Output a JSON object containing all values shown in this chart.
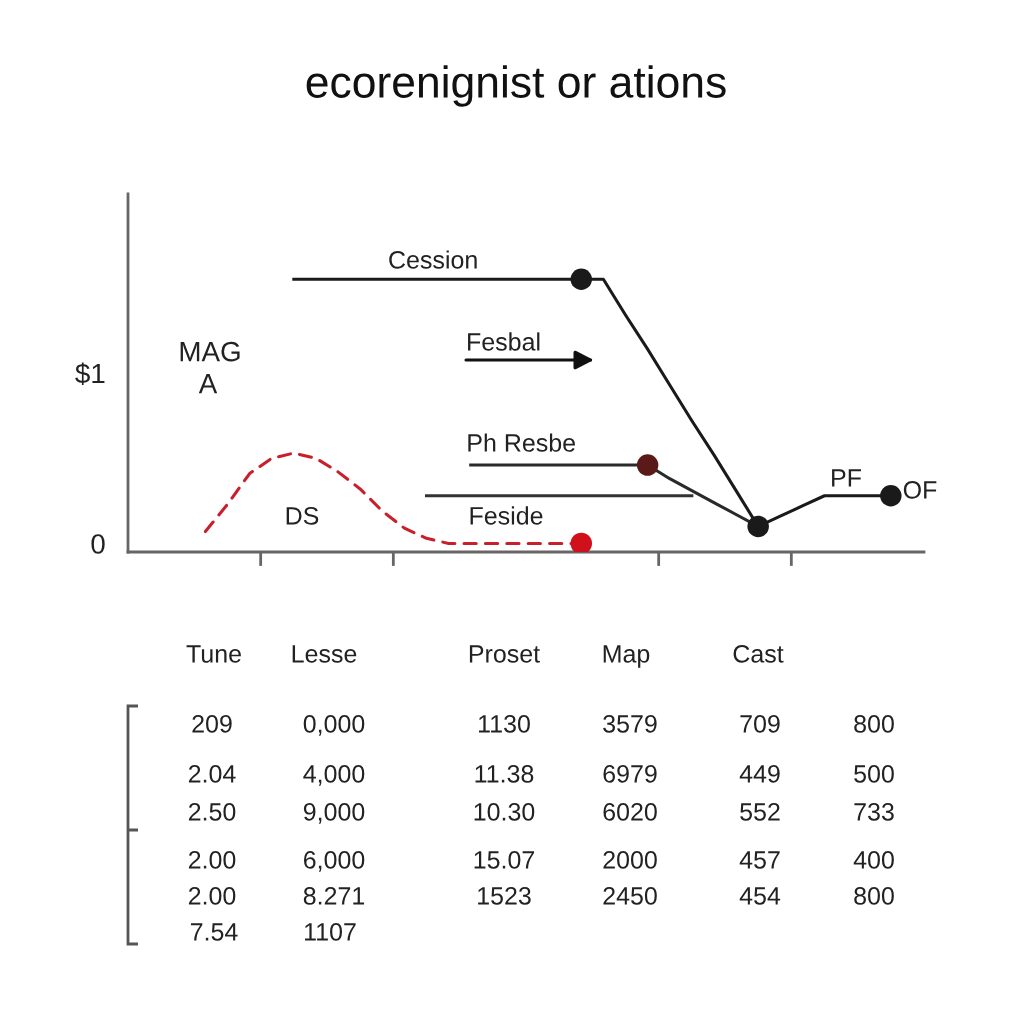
{
  "chart_data": [
    {
      "type": "line",
      "title": "ecorenignist or ations",
      "categories": [
        null,
        null,
        null,
        null,
        null,
        null,
        null,
        null,
        null,
        null,
        null,
        null,
        null,
        null,
        null,
        null,
        null,
        null,
        null,
        null,
        null,
        null,
        null,
        null,
        null,
        null,
        null,
        null,
        null,
        null,
        null,
        null,
        null,
        null,
        null,
        null
      ],
      "series": [
        {
          "name": "Cession",
          "color": "#1a1a1a",
          "values": [
            null,
            null,
            null,
            null,
            null,
            null,
            null,
            1.55,
            1.55,
            1.55,
            1.55,
            1.55,
            1.55,
            1.55,
            1.55,
            1.55,
            1.55,
            1.55,
            1.55,
            1.55,
            1.55,
            1.55,
            1.34,
            1.14,
            0.93,
            0.72,
            0.52,
            0.31,
            0.1,
            0.16,
            0.22,
            0.28,
            0.28,
            0.28,
            0.28,
            null
          ]
        },
        {
          "name": "Ph Resbe",
          "color": "#2a2a2a",
          "values": [
            null,
            null,
            null,
            null,
            null,
            null,
            null,
            null,
            null,
            null,
            null,
            null,
            null,
            null,
            null,
            0.46,
            0.46,
            0.46,
            0.46,
            0.46,
            0.46,
            0.46,
            0.46,
            0.46,
            0.38,
            0.31,
            0.24,
            0.17,
            0.1,
            null,
            null,
            null,
            null,
            null,
            null,
            null
          ]
        },
        {
          "color": "#333333",
          "values": [
            null,
            null,
            null,
            null,
            null,
            null,
            null,
            null,
            null,
            null,
            null,
            null,
            null,
            0.28,
            0.28,
            0.28,
            0.28,
            0.28,
            0.28,
            0.28,
            0.28,
            0.28,
            0.28,
            0.28,
            0.28,
            0.28,
            null,
            null,
            null,
            null,
            null,
            null,
            null,
            null,
            null,
            null
          ]
        },
        {
          "name": "Feside",
          "color": "#c8202a",
          "line_style": "dashed",
          "values": [
            null,
            null,
            null,
            0.07,
            0.23,
            0.41,
            0.5,
            0.53,
            0.5,
            0.42,
            0.32,
            0.19,
            0.09,
            0.03,
            0,
            0,
            0,
            0,
            0,
            0,
            0,
            null,
            null,
            null,
            null,
            null,
            null,
            null,
            null,
            null,
            null,
            null,
            null,
            null,
            null,
            null
          ]
        },
        {
          "type": "scatter",
          "marker": "circle",
          "color": "#1a1a1a",
          "values": [
            null,
            null,
            null,
            null,
            null,
            null,
            null,
            null,
            null,
            null,
            null,
            null,
            null,
            null,
            null,
            null,
            null,
            null,
            null,
            null,
            1.55,
            null,
            null,
            null,
            null,
            null,
            null,
            null,
            0.1,
            null,
            null,
            null,
            null,
            null,
            0.28,
            null
          ]
        },
        {
          "type": "scatter",
          "marker": "circle",
          "color": "#5b1a1a",
          "values": [
            null,
            null,
            null,
            null,
            null,
            null,
            null,
            null,
            null,
            null,
            null,
            null,
            null,
            null,
            null,
            null,
            null,
            null,
            null,
            null,
            null,
            null,
            null,
            0.46,
            null,
            null,
            null,
            null,
            null,
            null,
            null,
            null,
            null,
            null,
            null,
            null
          ]
        },
        {
          "type": "scatter",
          "marker": "circle",
          "color": "#d0101a",
          "values": [
            null,
            null,
            null,
            null,
            null,
            null,
            null,
            null,
            null,
            null,
            null,
            null,
            null,
            null,
            null,
            null,
            null,
            null,
            null,
            null,
            0,
            null,
            null,
            null,
            null,
            null,
            null,
            null,
            null,
            null,
            null,
            null,
            null,
            null,
            null,
            null
          ]
        }
      ],
      "ylim": [
        -0.05,
        2.05
      ],
      "yticks": [
        {
          "value": 1,
          "label": "$1"
        },
        0
      ],
      "tick_labels": "y",
      "annotations": [
        "MAG",
        "A",
        "Fesbal",
        "DS",
        "PF",
        "OF"
      ]
    },
    {
      "type": "other",
      "annotations": [
        "Tune",
        "Lesse",
        "Proset",
        "Map",
        "Cast",
        "209",
        "0,000",
        "1130",
        "3579",
        "709",
        "800",
        "2.04",
        "4,000",
        "11.38",
        "6979",
        "449",
        "500",
        "2.50",
        "9,000",
        "10.30",
        "6020",
        "552",
        "733",
        "2.00",
        "6,000",
        "15.07",
        "2000",
        "457",
        "400",
        "2.00",
        "8.271",
        "1523",
        "2450",
        "454",
        "800",
        "7.54",
        "1107"
      ]
    }
  ]
}
